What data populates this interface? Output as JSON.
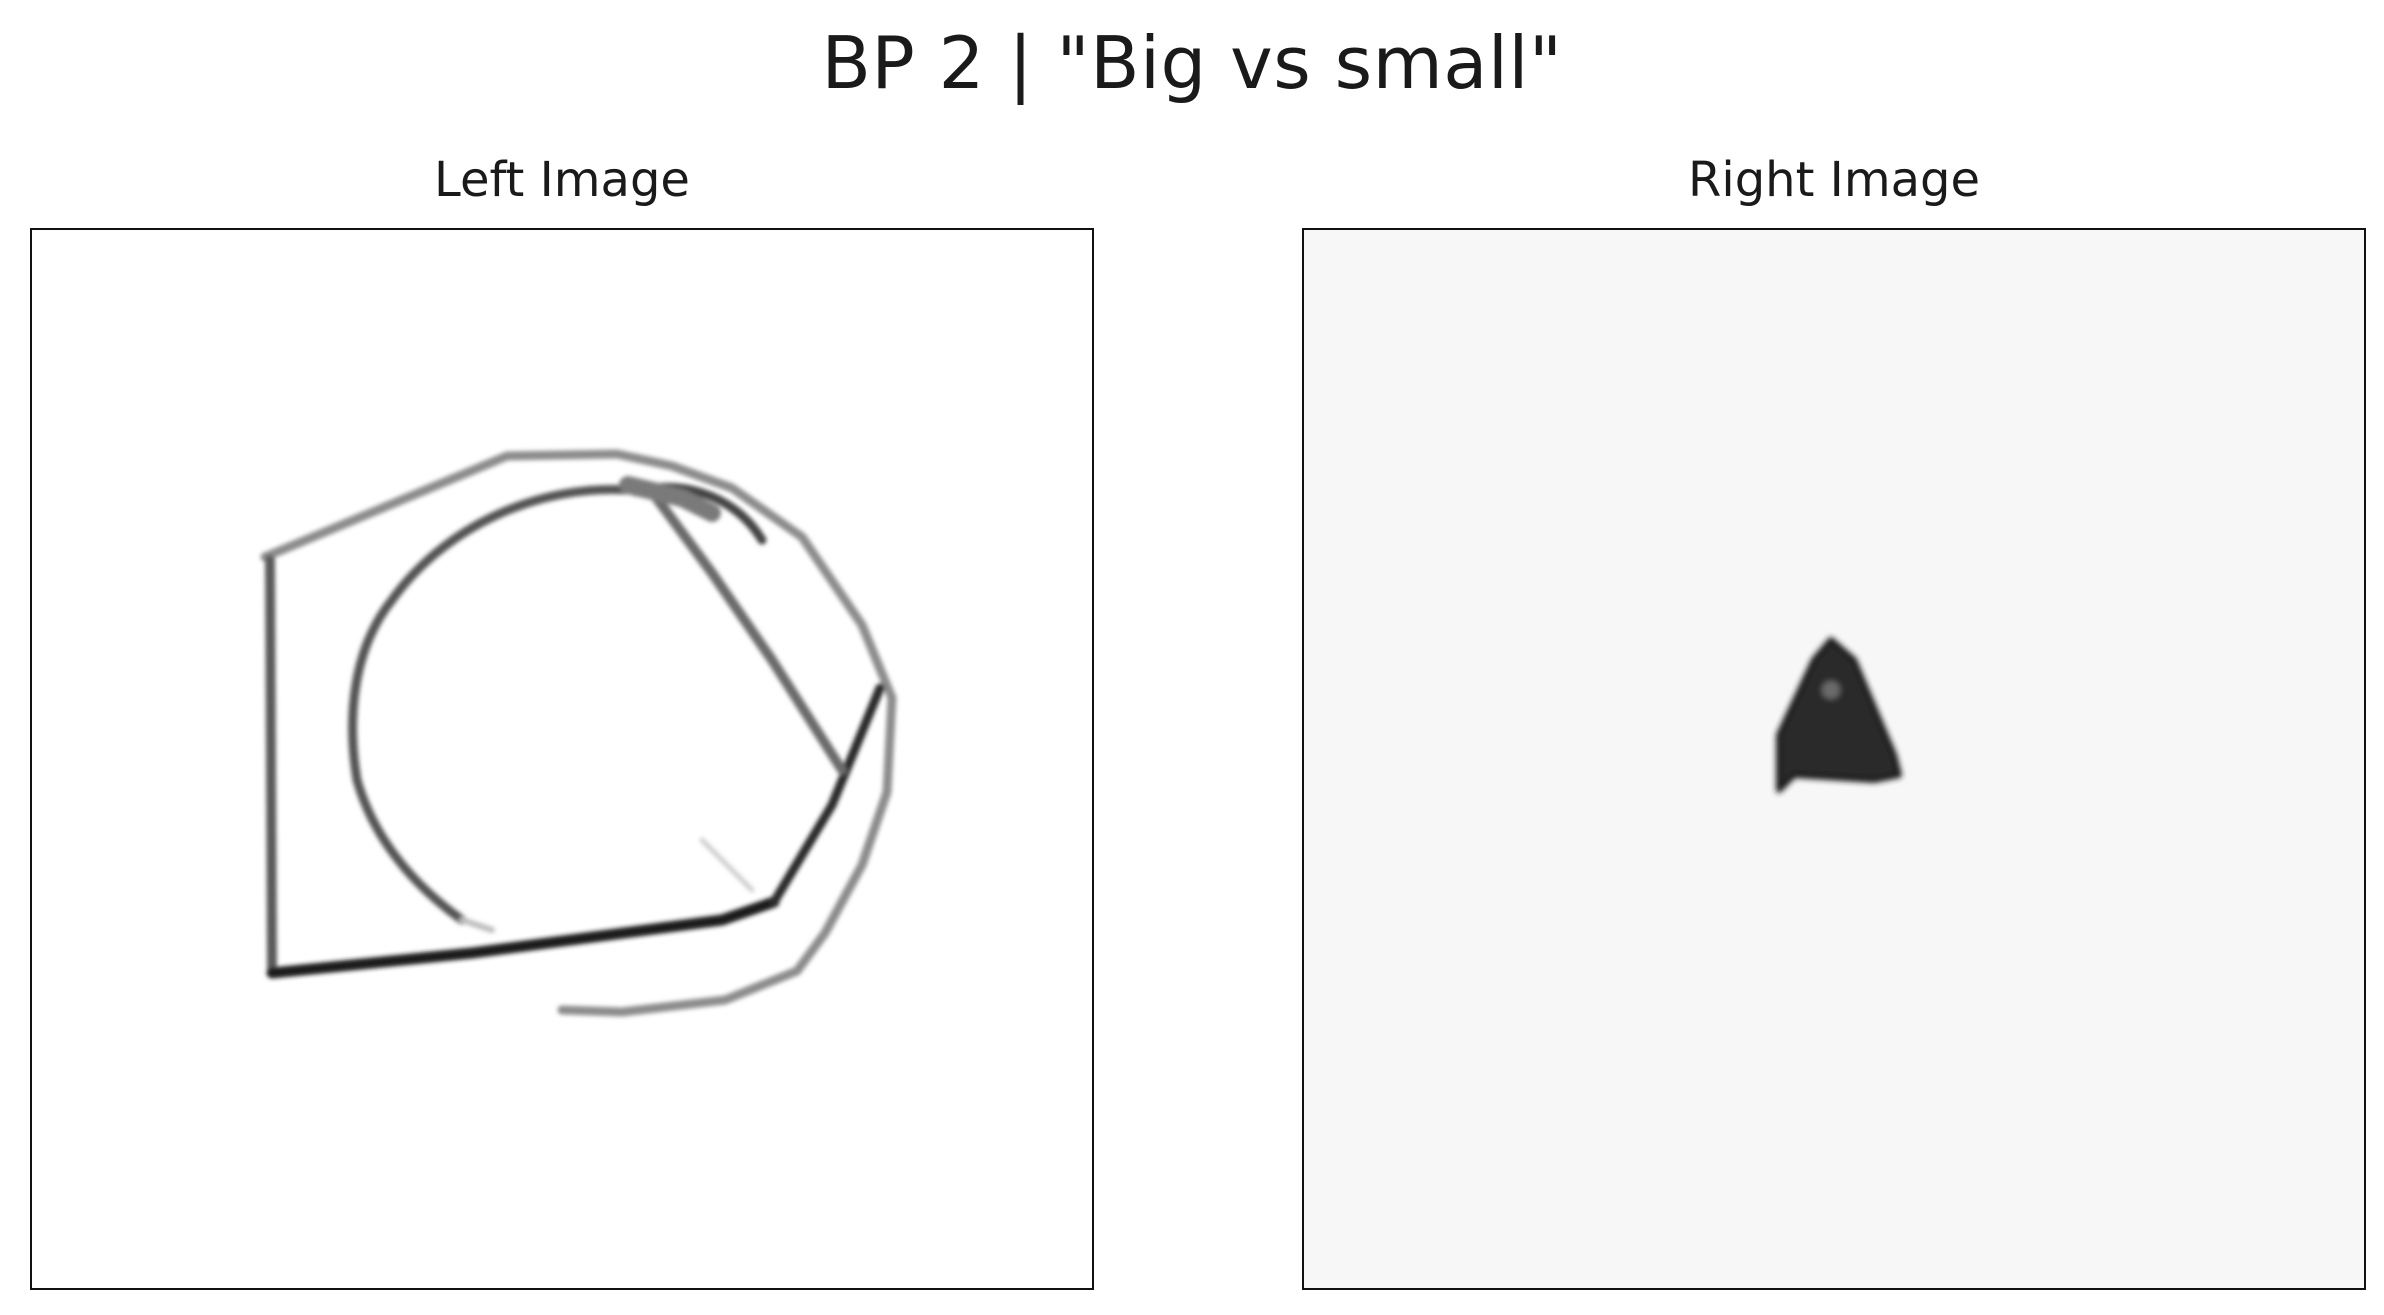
{
  "figure": {
    "title": "BP 2 | \"Big vs small\""
  },
  "panels": {
    "left": {
      "title": "Left Image"
    },
    "right": {
      "title": "Right Image"
    }
  },
  "colors": {
    "background": "#ffffff",
    "right_background": "#f7f7f7",
    "stroke_dark": "#1a1a1a",
    "stroke_mid": "#6e6e6e",
    "stroke_light": "#bdbdbd",
    "frame": "#111111"
  }
}
